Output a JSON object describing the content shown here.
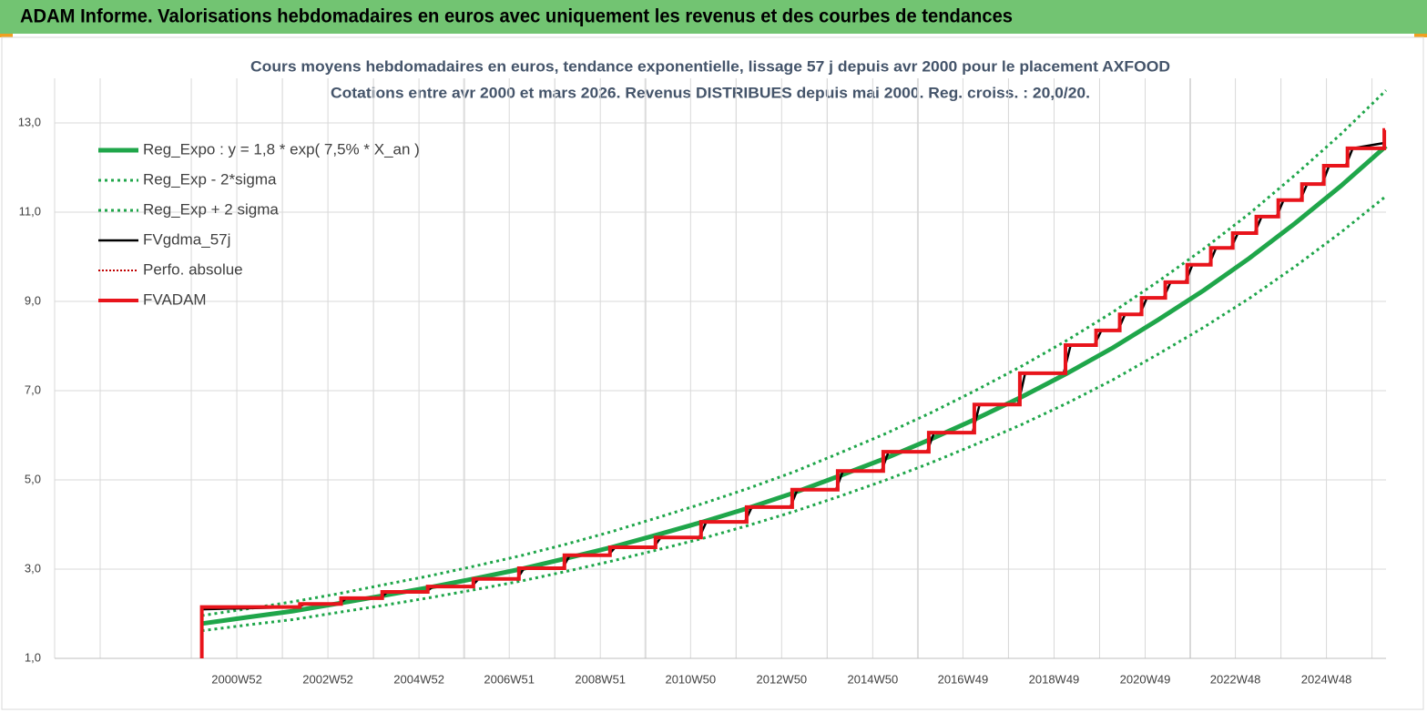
{
  "header": {
    "title": "ADAM Informe. Valorisations hebdomadaires en euros avec uniquement les revenus et des courbes de tendances"
  },
  "chart_data": {
    "type": "line",
    "title": "Cours moyens hebdomadaires en euros, tendance exponentielle, lissage 57 j depuis avr 2000 pour le placement AXFOOD",
    "subtitle": "Cotations entre avr 2000 et mars 2026.  Revenus DISTRIBUES depuis mai 2000. Reg. croiss. : 20,0/20.",
    "xlim": [
      "1996W52",
      "2026W12"
    ],
    "xticks": [
      "2000W52",
      "2002W52",
      "2004W52",
      "2006W51",
      "2008W51",
      "2010W50",
      "2012W50",
      "2014W50",
      "2016W49",
      "2018W49",
      "2020W49",
      "2022W48",
      "2024W48"
    ],
    "ylim": [
      1,
      14
    ],
    "yticks": [
      {
        "value": 1,
        "label": "1,0"
      },
      {
        "value": 3,
        "label": "3,0"
      },
      {
        "value": 5,
        "label": "5,0"
      },
      {
        "value": 7,
        "label": "7,0"
      },
      {
        "value": 9,
        "label": "9,0"
      },
      {
        "value": 11,
        "label": "11,0"
      },
      {
        "value": 13,
        "label": "13,0"
      }
    ],
    "grid": true,
    "legend": "upper-left",
    "series": [
      {
        "name": "Reg_Expo : y = 1,8 * exp( 7,5% *  X_an )",
        "color": "#1fa64a",
        "style": "solid",
        "width": 5,
        "x": [
          "2000W12",
          "2001W12",
          "2002W12",
          "2003W12",
          "2004W12",
          "2005W12",
          "2006W12",
          "2007W12",
          "2008W12",
          "2009W12",
          "2010W12",
          "2011W12",
          "2012W12",
          "2013W12",
          "2014W12",
          "2015W12",
          "2016W12",
          "2017W12",
          "2018W12",
          "2019W12",
          "2020W12",
          "2021W12",
          "2022W12",
          "2023W12",
          "2024W12",
          "2025W12",
          "2026W12"
        ],
        "values": [
          1.78,
          1.92,
          2.06,
          2.23,
          2.41,
          2.59,
          2.79,
          3.0,
          3.24,
          3.49,
          3.77,
          4.06,
          4.37,
          4.71,
          5.09,
          5.48,
          5.91,
          6.37,
          6.86,
          7.39,
          7.96,
          8.59,
          9.25,
          9.97,
          10.75,
          11.58,
          12.48
        ]
      },
      {
        "name": "Reg_Exp - 2*sigma",
        "color": "#1fa64a",
        "style": "dotted",
        "width": 3,
        "x": [
          "2000W12",
          "2001W12",
          "2002W12",
          "2003W12",
          "2004W12",
          "2005W12",
          "2006W12",
          "2007W12",
          "2008W12",
          "2009W12",
          "2010W12",
          "2011W12",
          "2012W12",
          "2013W12",
          "2014W12",
          "2015W12",
          "2016W12",
          "2017W12",
          "2018W12",
          "2019W12",
          "2020W12",
          "2021W12",
          "2022W12",
          "2023W12",
          "2024W12",
          "2025W12",
          "2026W12"
        ],
        "values": [
          1.62,
          1.75,
          1.87,
          2.03,
          2.19,
          2.36,
          2.54,
          2.73,
          2.95,
          3.18,
          3.43,
          3.69,
          3.98,
          4.29,
          4.63,
          4.99,
          5.38,
          5.8,
          6.24,
          6.72,
          7.24,
          7.82,
          8.42,
          9.07,
          9.78,
          10.54,
          11.36
        ]
      },
      {
        "name": "Reg_Exp + 2 sigma",
        "color": "#1fa64a",
        "style": "dotted",
        "width": 3,
        "x": [
          "2000W12",
          "2001W12",
          "2002W12",
          "2003W12",
          "2004W12",
          "2005W12",
          "2006W12",
          "2007W12",
          "2008W12",
          "2009W12",
          "2010W12",
          "2011W12",
          "2012W12",
          "2013W12",
          "2014W12",
          "2015W12",
          "2016W12",
          "2017W12",
          "2018W12",
          "2019W12",
          "2020W12",
          "2021W12",
          "2022W12",
          "2023W12",
          "2024W12",
          "2025W12",
          "2026W12"
        ],
        "values": [
          1.96,
          2.11,
          2.27,
          2.45,
          2.65,
          2.85,
          3.07,
          3.3,
          3.56,
          3.84,
          4.15,
          4.47,
          4.81,
          5.18,
          5.6,
          6.03,
          6.5,
          7.01,
          7.55,
          8.13,
          8.76,
          9.45,
          10.18,
          10.97,
          11.83,
          12.74,
          13.73
        ]
      },
      {
        "name": "FVgdma_57j",
        "color": "#000000",
        "style": "solid",
        "width": 2.5,
        "x": [
          "2000W12",
          "2002W18",
          "2002W26",
          "2003W13",
          "2003W21",
          "2004W08",
          "2004W16",
          "2005W08",
          "2005W16",
          "2006W08",
          "2006W16",
          "2007W08",
          "2007W16",
          "2008W08",
          "2008W16",
          "2009W08",
          "2009W16",
          "2010W08",
          "2010W16",
          "2011W08",
          "2011W16",
          "2012W08",
          "2012W16",
          "2013W08",
          "2013W16",
          "2014W08",
          "2014W16",
          "2015W08",
          "2015W16",
          "2016W08",
          "2016W16",
          "2017W08",
          "2017W16",
          "2018W08",
          "2018W16",
          "2019W08",
          "2019W16",
          "2019W43",
          "2019W51",
          "2020W18",
          "2020W26",
          "2020W43",
          "2020W51",
          "2021W18",
          "2021W26",
          "2021W43",
          "2021W51",
          "2022W18",
          "2022W26",
          "2022W43",
          "2022W51",
          "2023W18",
          "2023W26",
          "2023W43",
          "2023W51",
          "2024W18",
          "2024W26",
          "2024W43",
          "2024W51",
          "2025W18",
          "2025W26",
          "2026W10"
        ],
        "values": [
          2.1,
          2.15,
          2.22,
          2.22,
          2.35,
          2.35,
          2.49,
          2.49,
          2.61,
          2.61,
          2.78,
          2.78,
          3.02,
          3.02,
          3.31,
          3.31,
          3.49,
          3.49,
          3.71,
          3.71,
          4.06,
          4.06,
          4.39,
          4.39,
          4.78,
          4.78,
          5.2,
          5.2,
          5.63,
          5.63,
          6.06,
          6.06,
          6.69,
          6.69,
          7.39,
          7.39,
          8.02,
          8.02,
          8.35,
          8.35,
          8.71,
          8.71,
          9.08,
          9.08,
          9.43,
          9.43,
          9.82,
          9.82,
          10.2,
          10.2,
          10.53,
          10.53,
          10.9,
          10.9,
          11.27,
          11.27,
          11.63,
          11.63,
          12.04,
          12.04,
          12.43,
          12.55
        ]
      },
      {
        "name": "Perfo. absolue",
        "color": "#c00000",
        "style": "dotted",
        "width": 2,
        "x": [],
        "values": []
      },
      {
        "name": "FVADAM",
        "color": "#e8141b",
        "style": "solid",
        "width": 4,
        "x": [
          "2000W12",
          "2000W12",
          "2002W20",
          "2002W20",
          "2003W15",
          "2003W15",
          "2004W10",
          "2004W10",
          "2005W10",
          "2005W10",
          "2006W10",
          "2006W10",
          "2007W10",
          "2007W10",
          "2008W10",
          "2008W10",
          "2009W10",
          "2009W10",
          "2010W10",
          "2010W10",
          "2011W10",
          "2011W10",
          "2012W10",
          "2012W10",
          "2013W10",
          "2013W10",
          "2014W10",
          "2014W10",
          "2015W10",
          "2015W10",
          "2016W10",
          "2016W10",
          "2017W10",
          "2017W10",
          "2018W10",
          "2018W10",
          "2019W10",
          "2019W10",
          "2019W45",
          "2019W45",
          "2020W20",
          "2020W20",
          "2020W45",
          "2020W45",
          "2021W20",
          "2021W20",
          "2021W45",
          "2021W45",
          "2022W20",
          "2022W20",
          "2022W45",
          "2022W45",
          "2023W20",
          "2023W20",
          "2023W45",
          "2023W45",
          "2024W20",
          "2024W20",
          "2024W45",
          "2024W45",
          "2025W20",
          "2025W20",
          "2026W10",
          "2026W10",
          "2026W11"
        ],
        "values": [
          1.0,
          2.15,
          2.15,
          2.22,
          2.22,
          2.35,
          2.35,
          2.49,
          2.49,
          2.61,
          2.61,
          2.78,
          2.78,
          3.02,
          3.02,
          3.31,
          3.31,
          3.49,
          3.49,
          3.71,
          3.71,
          4.06,
          4.06,
          4.39,
          4.39,
          4.78,
          4.78,
          5.2,
          5.2,
          5.63,
          5.63,
          6.06,
          6.06,
          6.69,
          6.69,
          7.39,
          7.39,
          8.02,
          8.02,
          8.35,
          8.35,
          8.71,
          8.71,
          9.08,
          9.08,
          9.43,
          9.43,
          9.82,
          9.82,
          10.2,
          10.2,
          10.53,
          10.53,
          10.9,
          10.9,
          11.27,
          11.27,
          11.63,
          11.63,
          12.04,
          12.04,
          12.43,
          12.43,
          12.84,
          12.84
        ]
      }
    ]
  }
}
